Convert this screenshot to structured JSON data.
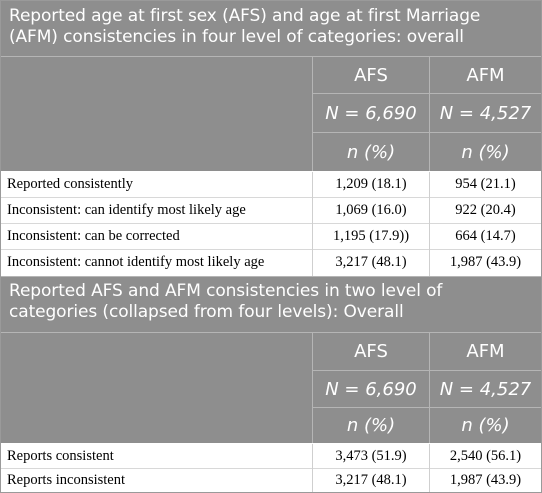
{
  "section1": {
    "title": "Reported age at first sex (AFS) and age at first Marriage (AFM) consistencies in four level of categories: overall",
    "col_headers": [
      "AFS",
      "AFM"
    ],
    "n_values": [
      "N = 6,690",
      "N = 4,527"
    ],
    "unit_labels": [
      "n (%)",
      "n (%)"
    ],
    "rows": [
      {
        "label": "Reported consistently",
        "afs": "1,209 (18.1)",
        "afm": "954 (21.1)"
      },
      {
        "label": "Inconsistent: can identify most likely age",
        "afs": "1,069 (16.0)",
        "afm": "922 (20.4)"
      },
      {
        "label": "Inconsistent: can be corrected",
        "afs": "1,195 (17.9))",
        "afm": "664 (14.7)"
      },
      {
        "label": "Inconsistent: cannot identify most likely age",
        "afs": "3,217 (48.1)",
        "afm": "1,987 (43.9)"
      }
    ]
  },
  "section2": {
    "title": "Reported AFS and AFM consistencies in two level of categories (collapsed from four levels): Overall",
    "col_headers": [
      "AFS",
      "AFM"
    ],
    "n_values": [
      "N = 6,690",
      "N = 4,527"
    ],
    "unit_labels": [
      "n (%)",
      "n (%)"
    ],
    "rows": [
      {
        "label": "Reports consistent",
        "afs": "3,473 (51.9)",
        "afm": "2,540 (56.1)"
      },
      {
        "label": "Reports inconsistent",
        "afs": "3,217 (48.1)",
        "afm": "1,987 (43.9)"
      }
    ]
  }
}
